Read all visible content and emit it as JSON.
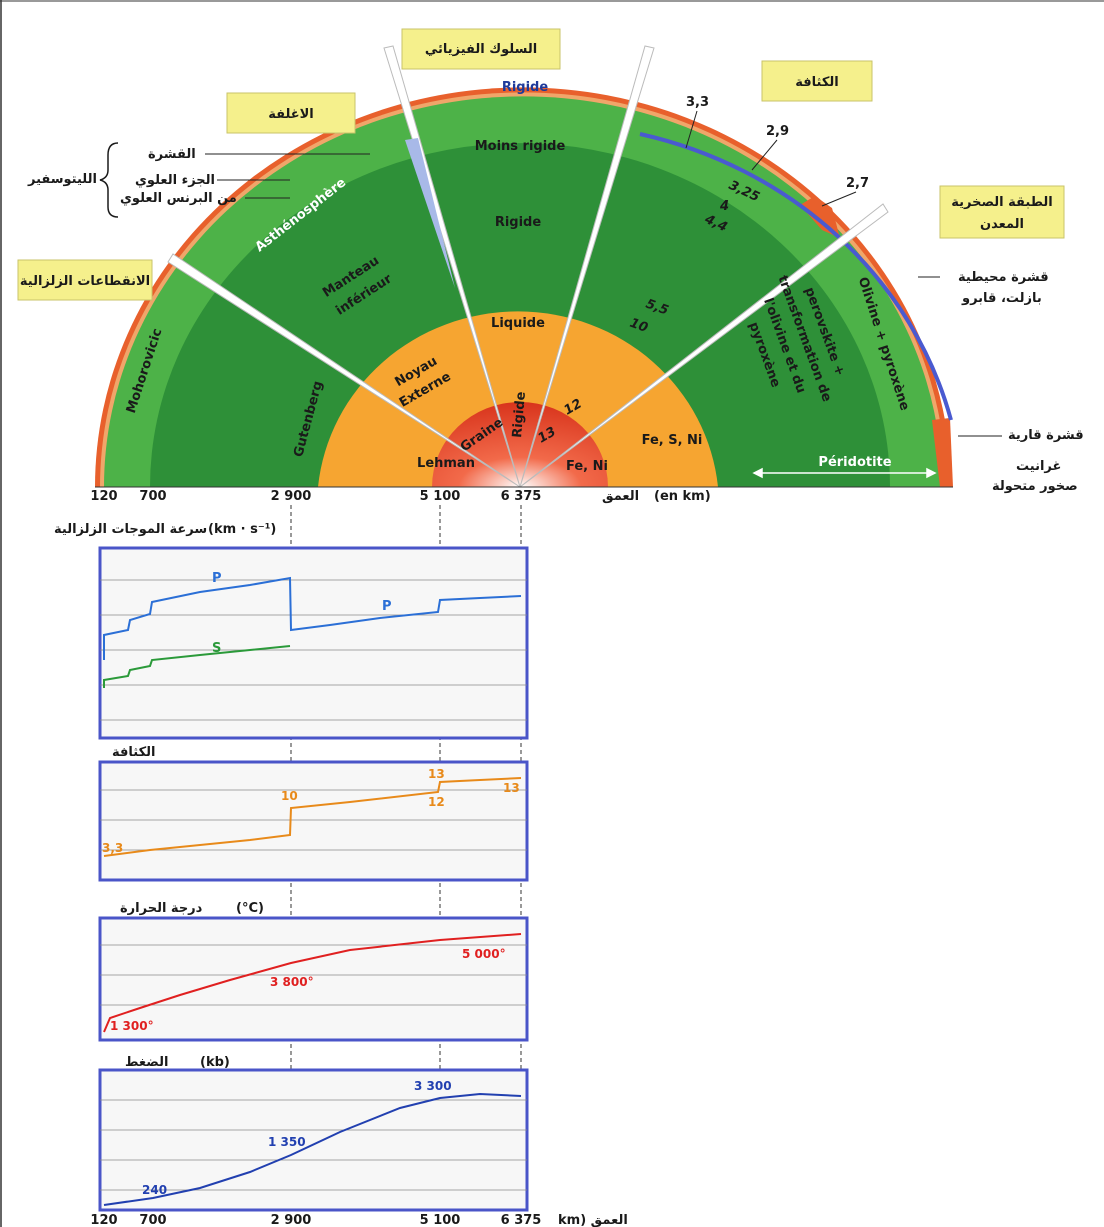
{
  "section": {
    "boxes": {
      "envelopes": "الاغلفة",
      "physical": "السلوك الفيزيائي",
      "density": "الكثافة",
      "rock": "الطبقة الصخرية\nالمعدن",
      "discontinuities": "الانقطاعات الزلزالية"
    },
    "lithosphere": {
      "brace_label": "الليتوسفير",
      "crust": "القشرة",
      "upper_mantle_1": "الجزء العلوي",
      "upper_mantle_2": "من البرنس العلوي"
    },
    "layers": {
      "asthenosphere": "Asthénosphère",
      "lower_mantle_1": "Manteau",
      "lower_mantle_2": "inférieur",
      "outer_core_1": "Noyau",
      "outer_core_2": "Externe",
      "inner_core": "Graine"
    },
    "discontinuities": {
      "moho": "Mohorovicic",
      "gutenberg": "Gutenberg",
      "lehman": "Lehman"
    },
    "behaviour": {
      "rigid_top": "Rigide",
      "less_rigid": "Moins rigide",
      "rigid_mantle": "Rigide",
      "liquid": "Liquide",
      "rigid_core": "Rigide"
    },
    "density_values": [
      "3,3",
      "2,9",
      "2,7",
      "3,25",
      "4",
      "4,4",
      "5,5",
      "10",
      "12",
      "13"
    ],
    "minerals": {
      "olivine": "Olivine + pyroxène",
      "perovskite_1": "perovskite +",
      "perovskite_2": "transformation de",
      "perovskite_3": "l'olivine et du",
      "perovskite_4": "pyroxène",
      "outer": "Fe, S, Ni",
      "inner": "Fe, Ni",
      "peridotite": "Péridotite"
    },
    "right_notes": {
      "oceanic_1": "قشرة محيطية",
      "oceanic_2": "بازلت، قابرو",
      "continental": "قشرة قارية",
      "continental_2": "غرانيت",
      "continental_3": "صخور متحولة"
    },
    "depth_axis": {
      "ticks": [
        "120",
        "700",
        "2 900",
        "5 100",
        "6 375"
      ],
      "label_ar": "العمق",
      "unit": "(en km)"
    }
  },
  "panels": {
    "velocity": {
      "title_ar": "سرعة الموجات الزلزالية",
      "unit": "(km · s⁻¹)",
      "series_p": "P",
      "series_s": "S"
    },
    "density": {
      "title_ar": "الكثافة",
      "labels": [
        "3,3",
        "10",
        "13",
        "12",
        "13"
      ]
    },
    "temperature": {
      "title_ar": "درجة الحرارة",
      "unit": "(°C)",
      "labels": [
        "1 300°",
        "3 800°",
        "5 000°"
      ]
    },
    "pressure": {
      "title_ar": "الضغط",
      "unit": "(kb)",
      "labels": [
        "240",
        "1 350",
        "3 300"
      ]
    },
    "bottom_axis": {
      "ticks": [
        "120",
        "700",
        "2 900",
        "5 100",
        "6 375"
      ],
      "label": "km) العمق"
    }
  },
  "colors": {
    "mantle_green": "#2f9a3c",
    "mantle_light": "#43b04a",
    "core_orange": "#f6a531",
    "inner_red": "#e03a1e",
    "label_box": "#f5f08c",
    "panel_frame": "#4a55c8",
    "p_wave": "#2b6fd6",
    "s_wave": "#2b9a3a",
    "density_curve": "#e88a1a",
    "temp_curve": "#e02020",
    "pressure_curve": "#2240b0"
  }
}
